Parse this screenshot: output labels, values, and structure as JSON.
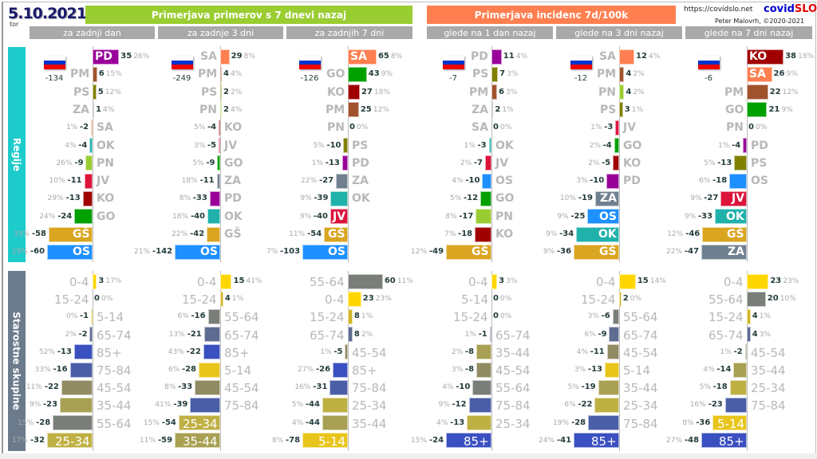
{
  "header": {
    "date": "5.10.2021",
    "weekday": "tor",
    "left_banner": "Primerjava primerov s 7 dnevi nazaj",
    "right_banner": "Primerjava incidenc 7d/100k",
    "url": "https://covidslo.net",
    "brand_a": "covid",
    "brand_b": "SLO",
    "author": "Peter Malovrh, ©2020-2021",
    "left_color": "#9ACD32",
    "right_color": "#FF7F50"
  },
  "columns": [
    "za zadnji dan",
    "za zadnje 3 dni",
    "za zadnjih 7 dni",
    "glede na 1 dan nazaj",
    "glede na 3 dni nazaj",
    "glede na 7 dni nazaj"
  ],
  "sections": {
    "regions": "Regije",
    "ages": "Starostne skupine"
  },
  "colors": {
    "PD": "#990099",
    "PM": "#A0522D",
    "PS": "#808000",
    "ZA": "#708090",
    "SA": "#FF7F50",
    "OK": "#20B2AA",
    "PN": "#9ACD32",
    "JV": "#DC143C",
    "KO": "#A00000",
    "GO": "#00A000",
    "GŠ": "#DAA520",
    "OS": "#1E90FF",
    "0-4": "#FFD700",
    "5-14": "#E8C51A",
    "15-24": "#D2B62C",
    "25-34": "#BFB043",
    "35-44": "#A8A052",
    "45-54": "#908B62",
    "55-64": "#7A7E78",
    "65-74": "#5E6C92",
    "75-84": "#4A5EA8",
    "85+": "#3A50C0"
  },
  "chart_data": [
    {
      "type": "bar",
      "orientation": "horizontal",
      "column": "za zadnji dan",
      "total": "-134",
      "regions": [
        [
          "PD",
          35,
          "26%"
        ],
        [
          "PM",
          6,
          "15%"
        ],
        [
          "PS",
          5,
          "12%"
        ],
        [
          "ZA",
          1,
          "4%"
        ],
        [
          "SA",
          -2,
          "1%"
        ],
        [
          "OK",
          -4,
          "4%"
        ],
        [
          "PN",
          -9,
          "26%"
        ],
        [
          "JV",
          -11,
          "10%"
        ],
        [
          "KO",
          -13,
          "29%"
        ],
        [
          "GO",
          -24,
          "24%"
        ],
        [
          "GŠ",
          -58,
          "35%"
        ],
        [
          "OS",
          -60,
          "19%"
        ]
      ],
      "ages": [
        [
          "0-4",
          3,
          "17%"
        ],
        [
          "15-24",
          0,
          "0%"
        ],
        [
          "5-14",
          -1,
          "0%"
        ],
        [
          "65-74",
          -2,
          "2%"
        ],
        [
          "85+",
          -13,
          "52%"
        ],
        [
          "75-84",
          -16,
          "33%"
        ],
        [
          "45-54",
          -22,
          "11%"
        ],
        [
          "35-44",
          -23,
          "9%"
        ],
        [
          "55-64",
          -28,
          "15%"
        ],
        [
          "25-34",
          -32,
          "17%"
        ]
      ]
    },
    {
      "type": "bar",
      "orientation": "horizontal",
      "column": "za zadnje 3 dni",
      "total": "-249",
      "regions": [
        [
          "SA",
          29,
          "8%"
        ],
        [
          "PM",
          4,
          "4%"
        ],
        [
          "PS",
          2,
          "2%"
        ],
        [
          "PN",
          2,
          "4%"
        ],
        [
          "KO",
          -4,
          "5%"
        ],
        [
          "JV",
          -5,
          "3%"
        ],
        [
          "GO",
          -9,
          "5%"
        ],
        [
          "ZA",
          -11,
          "18%"
        ],
        [
          "PD",
          -33,
          "8%"
        ],
        [
          "OK",
          -40,
          "18%"
        ],
        [
          "GŠ",
          -42,
          "22%"
        ],
        [
          "OS",
          -142,
          "21%"
        ]
      ],
      "ages": [
        [
          "0-4",
          15,
          "41%"
        ],
        [
          "15-24",
          4,
          "1%"
        ],
        [
          "55-64",
          -16,
          "6%"
        ],
        [
          "65-74",
          -21,
          "13%"
        ],
        [
          "85+",
          -22,
          "43%"
        ],
        [
          "5-14",
          -28,
          "6%"
        ],
        [
          "45-54",
          -33,
          "8%"
        ],
        [
          "75-84",
          -39,
          "41%"
        ],
        [
          "25-34",
          -54,
          "15%"
        ],
        [
          "35-44",
          -59,
          "11%"
        ]
      ]
    },
    {
      "type": "bar",
      "orientation": "horizontal",
      "column": "za zadnjih 7 dni",
      "total": "-126",
      "regions": [
        [
          "SA",
          65,
          "8%"
        ],
        [
          "GO",
          43,
          "9%"
        ],
        [
          "KO",
          27,
          "18%"
        ],
        [
          "PM",
          25,
          "12%"
        ],
        [
          "PN",
          0,
          "0%"
        ],
        [
          "PS",
          -10,
          "5%"
        ],
        [
          "PD",
          -13,
          "1%"
        ],
        [
          "ZA",
          -27,
          "22%"
        ],
        [
          "OK",
          -39,
          "9%"
        ],
        [
          "JV",
          -40,
          "9%"
        ],
        [
          "GŠ",
          -54,
          "11%"
        ],
        [
          "OS",
          -103,
          "7%"
        ]
      ],
      "ages": [
        [
          "55-64",
          60,
          "11%"
        ],
        [
          "0-4",
          23,
          "23%"
        ],
        [
          "15-24",
          8,
          "1%"
        ],
        [
          "65-74",
          8,
          "2%"
        ],
        [
          "45-54",
          -5,
          "1%"
        ],
        [
          "85+",
          -26,
          "27%"
        ],
        [
          "75-84",
          -31,
          "16%"
        ],
        [
          "25-34",
          -44,
          "5%"
        ],
        [
          "35-44",
          -44,
          "4%"
        ],
        [
          "5-14",
          -78,
          "8%"
        ]
      ]
    },
    {
      "type": "bar",
      "orientation": "horizontal",
      "column": "glede na 1 dan nazaj",
      "total": "-7",
      "regions": [
        [
          "PD",
          11,
          "4%"
        ],
        [
          "PS",
          7,
          "3%"
        ],
        [
          "PM",
          6,
          "3%"
        ],
        [
          "ZA",
          2,
          "1%"
        ],
        [
          "SA",
          0,
          "0%"
        ],
        [
          "OK",
          -3,
          "1%"
        ],
        [
          "JV",
          -7,
          "2%"
        ],
        [
          "OS",
          -10,
          "4%"
        ],
        [
          "GO",
          -12,
          "5%"
        ],
        [
          "PN",
          -17,
          "8%"
        ],
        [
          "KO",
          -18,
          "7%"
        ],
        [
          "GŠ",
          -49,
          "12%"
        ]
      ],
      "ages": [
        [
          "0-4",
          3,
          "3%"
        ],
        [
          "5-14",
          0,
          "0%"
        ],
        [
          "15-24",
          0,
          "0%"
        ],
        [
          "65-74",
          -1,
          "1%"
        ],
        [
          "35-44",
          -8,
          "2%"
        ],
        [
          "45-54",
          -8,
          "3%"
        ],
        [
          "55-64",
          -10,
          "4%"
        ],
        [
          "75-84",
          -12,
          "9%"
        ],
        [
          "25-34",
          -13,
          "4%"
        ],
        [
          "85+",
          -24,
          "15%"
        ]
      ]
    },
    {
      "type": "bar",
      "orientation": "horizontal",
      "column": "glede na 3 dni nazaj",
      "total": "-12",
      "regions": [
        [
          "SA",
          12,
          "4%"
        ],
        [
          "PM",
          4,
          "2%"
        ],
        [
          "PN",
          4,
          "2%"
        ],
        [
          "PS",
          3,
          "1%"
        ],
        [
          "JV",
          -3,
          "1%"
        ],
        [
          "GO",
          -4,
          "2%"
        ],
        [
          "KO",
          -5,
          "2%"
        ],
        [
          "PD",
          -10,
          "3%"
        ],
        [
          "ZA",
          -19,
          "10%"
        ],
        [
          "OS",
          -25,
          "9%"
        ],
        [
          "OK",
          -34,
          "9%"
        ],
        [
          "GŠ",
          -36,
          "9%"
        ]
      ],
      "ages": [
        [
          "0-4",
          15,
          "14%"
        ],
        [
          "15-24",
          2,
          "0%"
        ],
        [
          "55-64",
          -6,
          "3%"
        ],
        [
          "65-74",
          -9,
          "6%"
        ],
        [
          "45-54",
          -11,
          "4%"
        ],
        [
          "5-14",
          -13,
          "3%"
        ],
        [
          "35-44",
          -19,
          "5%"
        ],
        [
          "25-34",
          -22,
          "6%"
        ],
        [
          "75-84",
          -28,
          "19%"
        ],
        [
          "85+",
          -41,
          "24%"
        ]
      ]
    },
    {
      "type": "bar",
      "orientation": "horizontal",
      "column": "glede na 7 dni nazaj",
      "total": "-6",
      "regions": [
        [
          "KO",
          38,
          "18%"
        ],
        [
          "SA",
          26,
          "9%"
        ],
        [
          "PM",
          22,
          "12%"
        ],
        [
          "GO",
          21,
          "9%"
        ],
        [
          "PN",
          0,
          "0%"
        ],
        [
          "PD",
          -4,
          "1%"
        ],
        [
          "PS",
          -13,
          "5%"
        ],
        [
          "OS",
          -18,
          "6%"
        ],
        [
          "JV",
          -27,
          "9%"
        ],
        [
          "OK",
          -33,
          "9%"
        ],
        [
          "GŠ",
          -46,
          "12%"
        ],
        [
          "ZA",
          -47,
          "22%"
        ]
      ],
      "ages": [
        [
          "0-4",
          23,
          "23%"
        ],
        [
          "55-64",
          20,
          "10%"
        ],
        [
          "15-24",
          4,
          "1%"
        ],
        [
          "65-74",
          4,
          "3%"
        ],
        [
          "45-54",
          -2,
          "1%"
        ],
        [
          "35-44",
          -14,
          "4%"
        ],
        [
          "25-34",
          -18,
          "5%"
        ],
        [
          "75-84",
          -23,
          "16%"
        ],
        [
          "5-14",
          -36,
          "8%"
        ],
        [
          "85+",
          -48,
          "27%"
        ]
      ]
    }
  ]
}
